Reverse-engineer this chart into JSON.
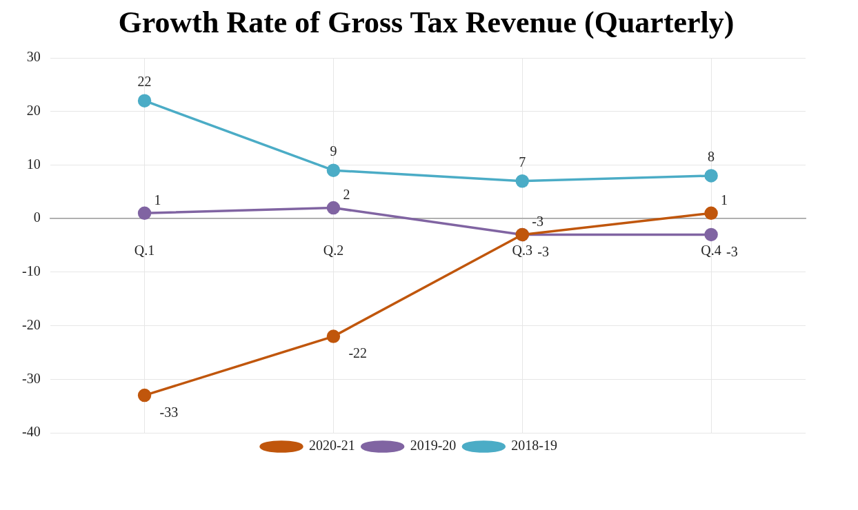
{
  "chart_data": {
    "type": "line",
    "title": "Growth Rate of Gross Tax Revenue (Quarterly)",
    "categories": [
      "Q.1",
      "Q.2",
      "Q.3",
      "Q.4"
    ],
    "series": [
      {
        "name": "2018-19",
        "color": "#4bacc6",
        "values": [
          22,
          9,
          7,
          8
        ]
      },
      {
        "name": "2019-20",
        "color": "#8064a2",
        "values": [
          1,
          2,
          -3,
          -3
        ]
      },
      {
        "name": "2020-21",
        "color": "#c0560c",
        "values": [
          -33,
          -22,
          -3,
          1
        ]
      }
    ],
    "ylim": [
      -40,
      30
    ],
    "yticks": [
      -40,
      -30,
      -20,
      -10,
      0,
      10,
      20,
      30
    ],
    "grid": true,
    "legend": "bottom",
    "marker": "circle",
    "line_style": "solid",
    "data_labels": true
  }
}
